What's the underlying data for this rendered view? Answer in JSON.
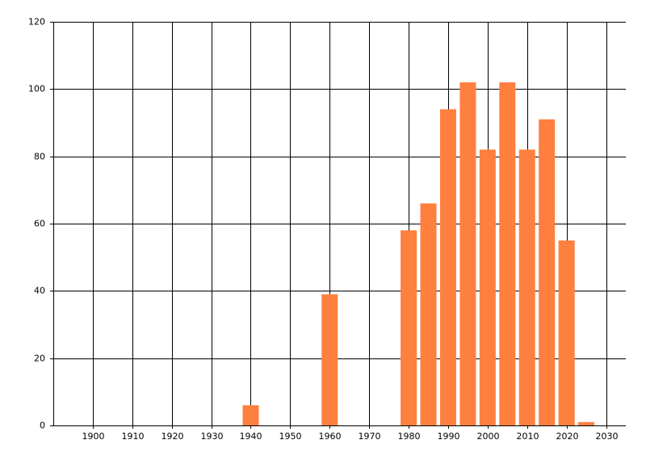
{
  "chart_data": {
    "type": "bar",
    "x": [
      1940,
      1960,
      1980,
      1985,
      1990,
      1995,
      2000,
      2005,
      2010,
      2015,
      2020,
      2025
    ],
    "values": [
      6,
      39,
      58,
      66,
      94,
      102,
      82,
      102,
      82,
      91,
      55,
      1
    ],
    "color": "#ff7f3f",
    "xlim": [
      1890,
      2035
    ],
    "ylim": [
      0,
      120
    ],
    "xticks": [
      1900,
      1910,
      1920,
      1930,
      1940,
      1950,
      1960,
      1970,
      1980,
      1990,
      2000,
      2010,
      2020,
      2030
    ],
    "yticks": [
      0,
      20,
      40,
      60,
      80,
      100,
      120
    ],
    "grid": true
  }
}
